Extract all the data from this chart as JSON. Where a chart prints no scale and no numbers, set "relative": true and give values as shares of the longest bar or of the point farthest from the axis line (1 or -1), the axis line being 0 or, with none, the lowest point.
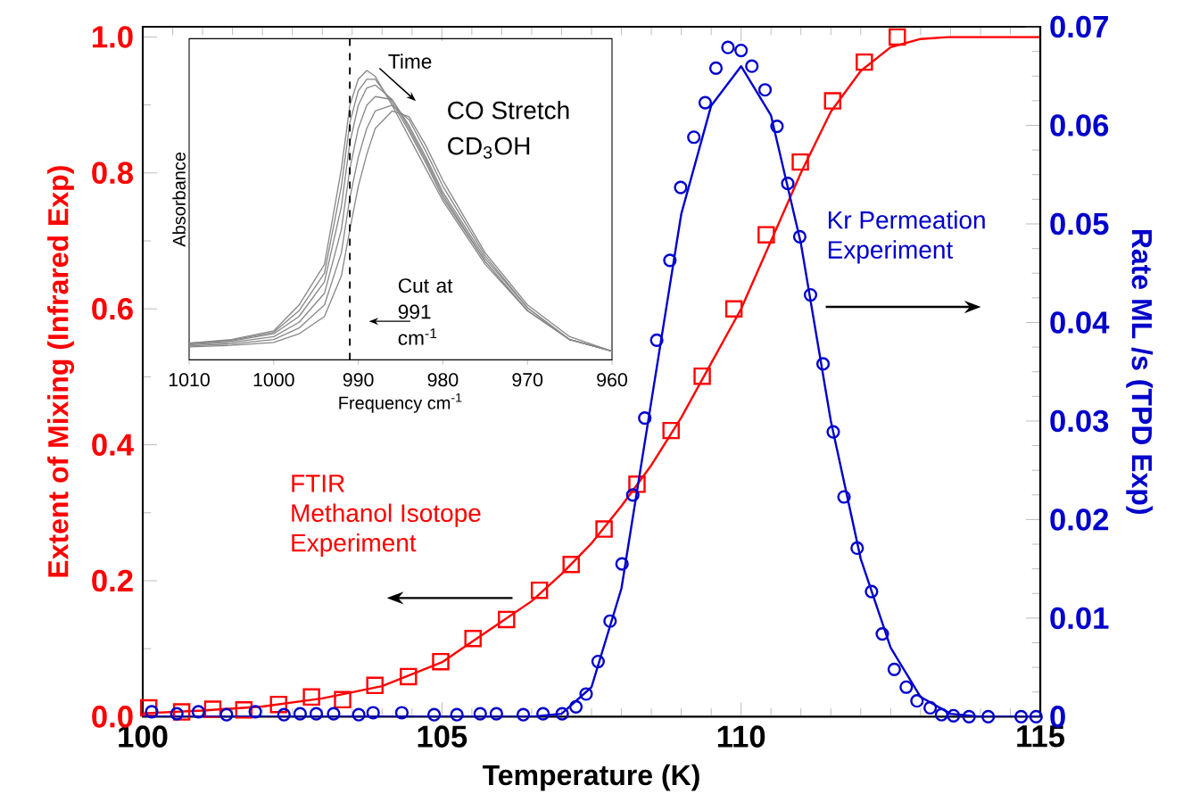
{
  "chart_data": [
    {
      "type": "scatter",
      "xlabel": "Temperature (K)",
      "ylabel": "Extent of Mixing (Infrared Exp)",
      "y2label": "Rate ML /s (TPD Exp)",
      "xlim": [
        100,
        115
      ],
      "xticks": [
        100,
        105,
        110,
        115
      ],
      "ylim": [
        0,
        1.015
      ],
      "yticks": [
        {
          "value": 0,
          "label": "0.0"
        },
        0.2,
        0.4,
        0.6,
        0.8,
        {
          "value": 1,
          "label": "1.0"
        }
      ],
      "y2lim": [
        0,
        0.07
      ],
      "y2ticks": [
        0,
        0.01,
        0.02,
        0.03,
        0.04,
        0.05,
        0.06,
        0.07
      ],
      "annotations": [
        "FTIR",
        "Methanol Isotope",
        "Experiment",
        "Kr Permeation",
        "Experiment"
      ],
      "series": [
        {
          "type": "scatter",
          "marker": "square",
          "color": "#ff0000",
          "x": [
            100.1,
            100.65,
            101.17,
            101.69,
            102.27,
            102.82,
            103.34,
            103.88,
            104.44,
            104.98,
            105.52,
            106.08,
            106.63,
            107.16,
            107.71,
            108.26,
            108.83,
            109.35,
            109.88,
            110.42,
            110.99,
            111.53,
            112.06,
            112.61
          ],
          "values": [
            0.013,
            0.007,
            0.011,
            0.01,
            0.018,
            0.029,
            0.025,
            0.046,
            0.059,
            0.081,
            0.115,
            0.143,
            0.186,
            0.224,
            0.276,
            0.342,
            0.421,
            0.501,
            0.6,
            0.709,
            0.816,
            0.906,
            0.963,
            1.0
          ]
        },
        {
          "type": "line",
          "marker": "none",
          "color": "#ff0000",
          "x": [
            100,
            101,
            102,
            103,
            104,
            105,
            106,
            106.5,
            107,
            107.5,
            108,
            108.5,
            109,
            109.5,
            110,
            110.5,
            111,
            111.5,
            112,
            112.5,
            113,
            113.5,
            114,
            115
          ],
          "values": [
            0.005,
            0.009,
            0.015,
            0.027,
            0.045,
            0.08,
            0.14,
            0.17,
            0.21,
            0.255,
            0.31,
            0.37,
            0.44,
            0.52,
            0.6,
            0.7,
            0.8,
            0.89,
            0.95,
            0.985,
            0.997,
            1.0,
            1.0,
            1.0
          ]
        },
        {
          "type": "scatter",
          "marker": "circle",
          "axis": "y2",
          "color": "#0000cc",
          "x": [
            100.15,
            100.57,
            100.93,
            101.4,
            101.88,
            102.36,
            102.63,
            102.9,
            103.19,
            103.61,
            103.85,
            104.33,
            104.87,
            105.25,
            105.64,
            105.91,
            106.36,
            106.69,
            107.01,
            107.24,
            107.41,
            107.61,
            107.81,
            108.01,
            108.19,
            108.39,
            108.59,
            108.81,
            108.99,
            109.21,
            109.4,
            109.58,
            109.78,
            110.0,
            110.18,
            110.4,
            110.6,
            110.78,
            110.98,
            111.16,
            111.37,
            111.54,
            111.72,
            111.94,
            112.18,
            112.36,
            112.56,
            112.76,
            112.94,
            113.16,
            113.35,
            113.55,
            113.81,
            114.13,
            114.68,
            114.93
          ],
          "values": [
            0.0005,
            0.0003,
            0.0005,
            0.0002,
            0.0005,
            0.0002,
            0.0003,
            0.0003,
            0.0003,
            0.0002,
            0.0004,
            0.0004,
            0.0002,
            0.0002,
            0.0003,
            0.0003,
            0.0002,
            0.0003,
            0.0003,
            0.001,
            0.0023,
            0.0056,
            0.0097,
            0.0155,
            0.0225,
            0.0303,
            0.0382,
            0.0463,
            0.0537,
            0.0588,
            0.0623,
            0.0658,
            0.0679,
            0.0676,
            0.066,
            0.0636,
            0.0599,
            0.0541,
            0.0487,
            0.0428,
            0.0358,
            0.0289,
            0.0223,
            0.0171,
            0.0127,
            0.0084,
            0.0048,
            0.003,
            0.0016,
            0.0009,
            0.0002,
            0.0001,
            0,
            0,
            0,
            0
          ]
        },
        {
          "type": "line",
          "marker": "none",
          "axis": "y2",
          "color": "#0000cc",
          "x": [
            100,
            106.5,
            107,
            107.5,
            108,
            108.5,
            109,
            109.5,
            110,
            110.5,
            111,
            111.5,
            112,
            112.5,
            113,
            113.5,
            114,
            115
          ],
          "values": [
            0,
            0,
            0.0003,
            0.003,
            0.013,
            0.032,
            0.051,
            0.062,
            0.066,
            0.061,
            0.048,
            0.03,
            0.016,
            0.007,
            0.002,
            0.0003,
            0,
            0
          ]
        }
      ]
    },
    {
      "type": "line",
      "relative": true,
      "xlabel": "Frequency cm$^{-1}$",
      "ylabel": "Absorbance",
      "xlim": [
        1010,
        960
      ],
      "xticks": [
        1010,
        1000,
        990,
        980,
        970,
        960
      ],
      "x": [
        1010,
        1005,
        1000,
        997,
        994,
        992,
        991,
        990,
        989,
        988,
        986,
        984,
        982,
        980,
        975,
        970,
        965,
        960
      ],
      "annotations": [
        "Time",
        "CO Stretch",
        "CD$_{3}$OH"
      ],
      "ref_lines": [
        {
          "axis": "x",
          "value": 991,
          "label": "Cut at 991 cm$^{-1}$",
          "line_style": "dashed",
          "color": "#000000"
        }
      ],
      "series": [
        {
          "color": "#888888",
          "values": [
            0.058,
            0.07,
            0.1,
            0.19,
            0.33,
            0.66,
            0.88,
            0.97,
            1.0,
            0.98,
            0.88,
            0.77,
            0.66,
            0.55,
            0.33,
            0.17,
            0.07,
            0.03
          ]
        },
        {
          "color": "#888888",
          "values": [
            0.058,
            0.068,
            0.095,
            0.17,
            0.3,
            0.6,
            0.82,
            0.93,
            0.97,
            0.97,
            0.89,
            0.79,
            0.68,
            0.56,
            0.34,
            0.17,
            0.07,
            0.03
          ]
        },
        {
          "color": "#888888",
          "values": [
            0.056,
            0.065,
            0.09,
            0.15,
            0.27,
            0.53,
            0.75,
            0.88,
            0.94,
            0.95,
            0.9,
            0.8,
            0.69,
            0.57,
            0.34,
            0.17,
            0.07,
            0.03
          ]
        },
        {
          "color": "#888888",
          "values": [
            0.052,
            0.06,
            0.08,
            0.13,
            0.23,
            0.45,
            0.66,
            0.8,
            0.88,
            0.91,
            0.9,
            0.81,
            0.7,
            0.58,
            0.35,
            0.18,
            0.07,
            0.03
          ]
        },
        {
          "color": "#888888",
          "values": [
            0.048,
            0.055,
            0.07,
            0.11,
            0.19,
            0.37,
            0.56,
            0.7,
            0.8,
            0.86,
            0.88,
            0.83,
            0.72,
            0.6,
            0.36,
            0.18,
            0.07,
            0.03
          ]
        },
        {
          "color": "#888888",
          "values": [
            0.045,
            0.05,
            0.06,
            0.09,
            0.15,
            0.29,
            0.45,
            0.6,
            0.71,
            0.8,
            0.86,
            0.84,
            0.74,
            0.62,
            0.37,
            0.19,
            0.08,
            0.03
          ]
        }
      ]
    }
  ]
}
